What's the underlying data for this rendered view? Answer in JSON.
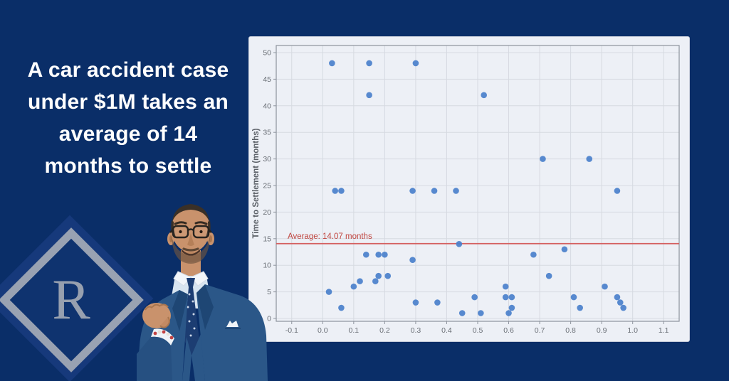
{
  "headline": {
    "lines": [
      "A car accident case",
      "under $1M takes an",
      "average of 14",
      "months to settle"
    ]
  },
  "logo": {
    "letter": "R"
  },
  "colors": {
    "background": "#0a2e68",
    "headline_text": "#ffffff",
    "card_background": "#edf0f6",
    "grid_color": "#d6dae1",
    "spine_color": "#8d939d",
    "tick_text_color": "#696e75",
    "axis_label_color": "#5a5f66",
    "point_color": "#4a80cb",
    "average_line_color": "#d45f5f",
    "average_label_color": "#c0453f",
    "logo_gray": "#99a2b2"
  },
  "chart_data": {
    "type": "scatter",
    "title": "",
    "xlabel": "",
    "ylabel": "Time to Settlement (months)",
    "xlim": [
      -0.1,
      1.1
    ],
    "ylim": [
      0,
      50
    ],
    "x_ticks": [
      -0.1,
      0.0,
      0.1,
      0.2,
      0.3,
      0.4,
      0.5,
      0.6,
      0.7,
      0.8,
      0.9,
      1.0,
      1.1
    ],
    "y_ticks": [
      0,
      5,
      10,
      15,
      20,
      25,
      30,
      35,
      40,
      45,
      50
    ],
    "grid": true,
    "legend": "none",
    "points": [
      [
        0.02,
        5
      ],
      [
        0.03,
        48
      ],
      [
        0.04,
        24
      ],
      [
        0.06,
        24
      ],
      [
        0.06,
        2
      ],
      [
        0.1,
        6
      ],
      [
        0.12,
        7
      ],
      [
        0.14,
        12
      ],
      [
        0.15,
        48
      ],
      [
        0.15,
        42
      ],
      [
        0.17,
        7
      ],
      [
        0.18,
        12
      ],
      [
        0.18,
        8
      ],
      [
        0.2,
        12
      ],
      [
        0.21,
        8
      ],
      [
        0.29,
        24
      ],
      [
        0.29,
        11
      ],
      [
        0.3,
        48
      ],
      [
        0.3,
        3
      ],
      [
        0.36,
        24
      ],
      [
        0.37,
        3
      ],
      [
        0.43,
        24
      ],
      [
        0.44,
        14
      ],
      [
        0.45,
        1
      ],
      [
        0.49,
        4
      ],
      [
        0.51,
        1
      ],
      [
        0.52,
        42
      ],
      [
        0.59,
        6
      ],
      [
        0.59,
        4
      ],
      [
        0.6,
        1
      ],
      [
        0.61,
        4
      ],
      [
        0.61,
        2
      ],
      [
        0.68,
        12
      ],
      [
        0.71,
        30
      ],
      [
        0.73,
        8
      ],
      [
        0.78,
        13
      ],
      [
        0.81,
        4
      ],
      [
        0.83,
        2
      ],
      [
        0.86,
        30
      ],
      [
        0.91,
        6
      ],
      [
        0.95,
        24
      ],
      [
        0.95,
        4
      ],
      [
        0.96,
        3
      ],
      [
        0.97,
        2
      ]
    ],
    "average_line": {
      "value": 14.07,
      "label": "Average: 14.07 months"
    }
  }
}
